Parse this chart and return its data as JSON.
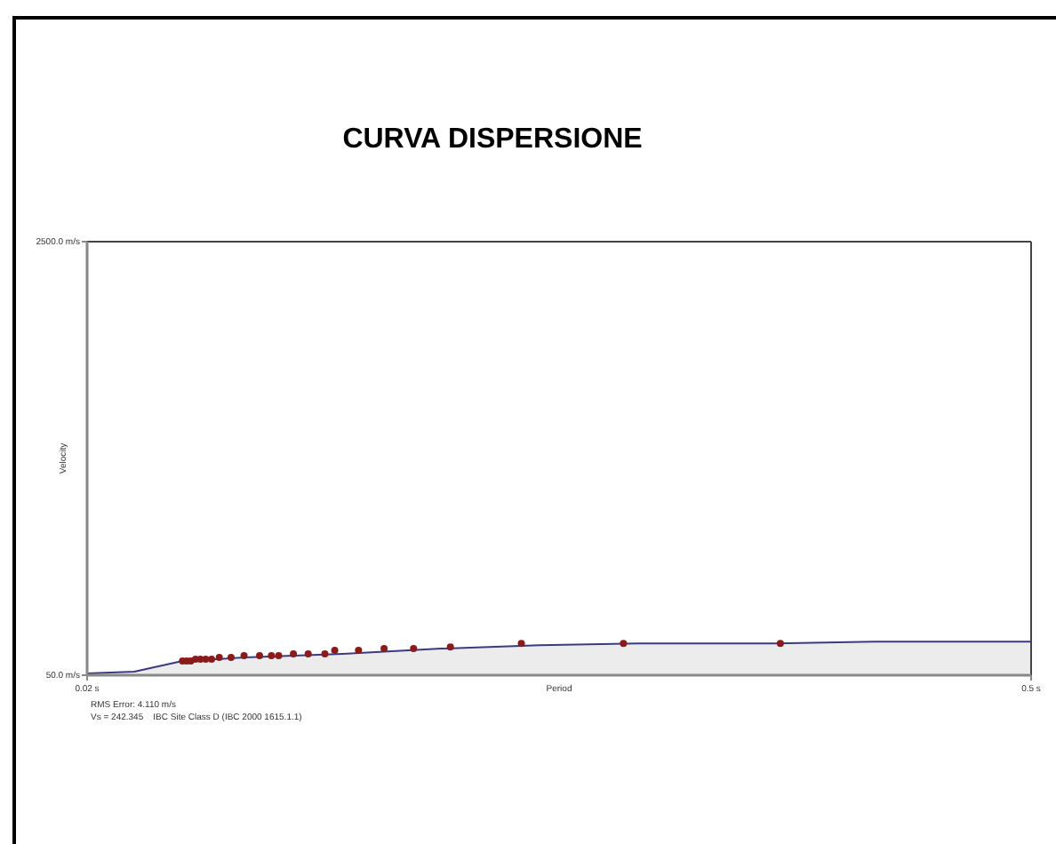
{
  "chart_data": {
    "type": "scatter",
    "title": "CURVA DISPERSIONE",
    "xlabel": "Period",
    "ylabel": "Velocity",
    "annotations": [
      "RMS Error: 4.110 m/s",
      "Vs = 242.345    IBC Site Class D (IBC 2000 1615.1.1)"
    ],
    "xlim": [
      0.02,
      0.5
    ],
    "xticks": [
      {
        "value": 0.02,
        "label": "0.02 s"
      },
      {
        "value": 0.5,
        "label": "0.5 s"
      }
    ],
    "ylim": [
      50,
      2500
    ],
    "yticks": [
      {
        "value": 50,
        "label": "50.0 m/s"
      },
      {
        "value": 2500,
        "label": "2500.0 m/s"
      }
    ],
    "series": [
      {
        "type": "area",
        "color": "#3a3a80",
        "x": [
          0.02,
          0.044,
          0.0685,
          0.1,
          0.15,
          0.2,
          0.25,
          0.3,
          0.37,
          0.42,
          0.5
        ],
        "values": [
          60,
          70,
          130,
          150,
          170,
          200,
          220,
          230,
          230,
          240,
          240
        ]
      },
      {
        "color": "#8b1a1a",
        "marker": "circle",
        "x": [
          0.0685,
          0.0706,
          0.0727,
          0.0751,
          0.0776,
          0.0803,
          0.0833,
          0.0872,
          0.0932,
          0.0998,
          0.1077,
          0.1137,
          0.1174,
          0.1249,
          0.1324,
          0.1409,
          0.1459,
          0.158,
          0.171,
          0.186,
          0.2047,
          0.2408,
          0.2927,
          0.3725
        ],
        "values": [
          130,
          130,
          130,
          140,
          140,
          140,
          140,
          150,
          150,
          160,
          160,
          160,
          160,
          170,
          170,
          170,
          190,
          190,
          200,
          200,
          210,
          230,
          230,
          230
        ]
      }
    ]
  }
}
